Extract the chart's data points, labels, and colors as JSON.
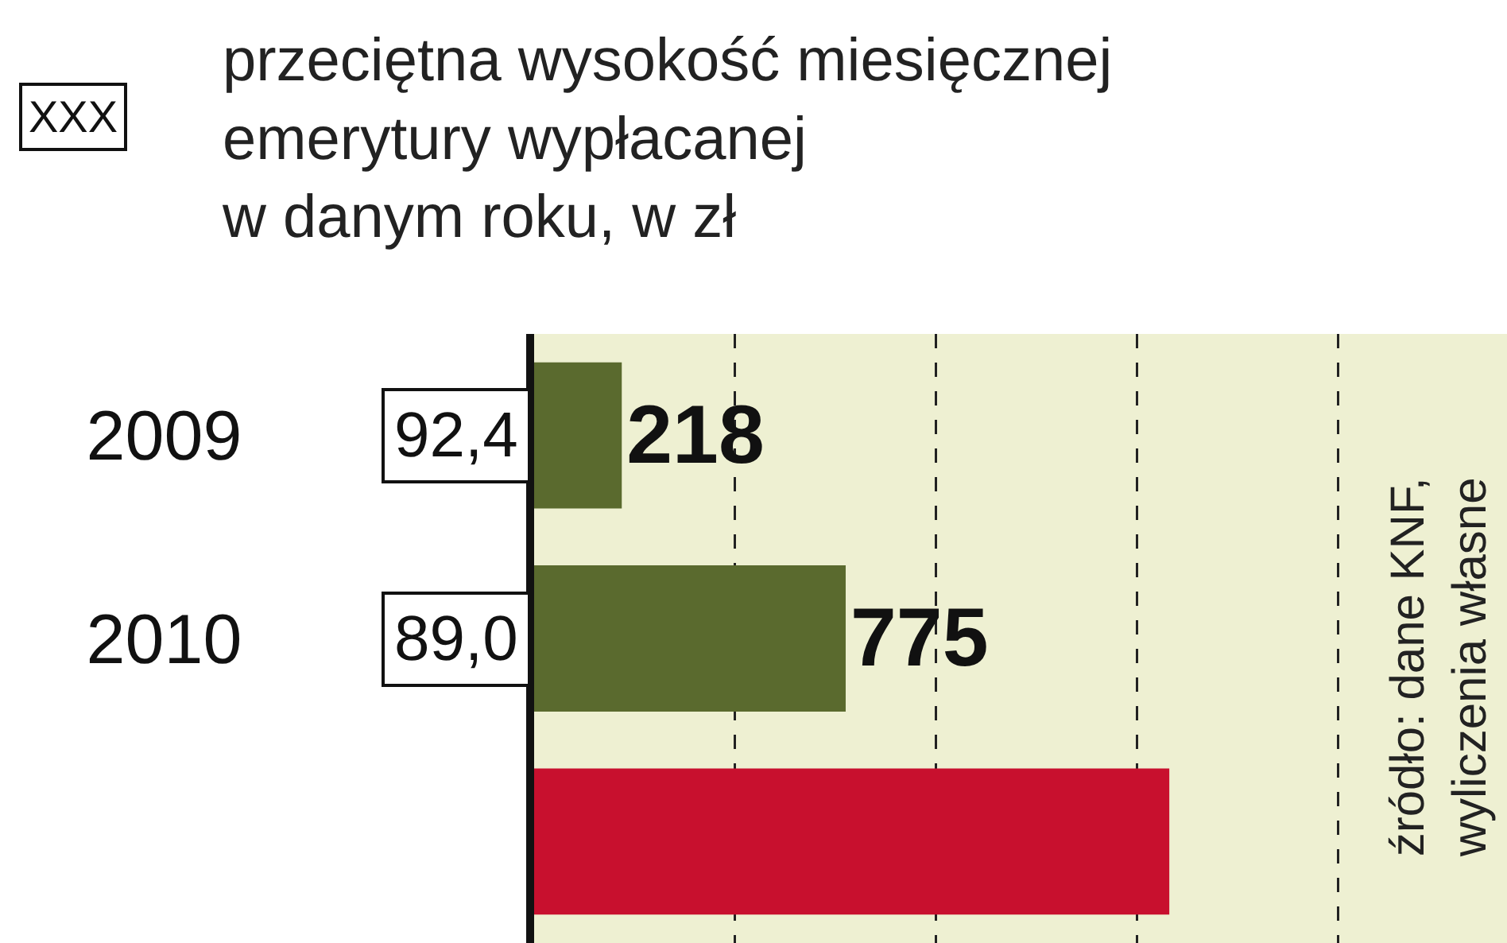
{
  "chart_data": {
    "type": "bar",
    "orientation": "horizontal",
    "title": "przeciętna wysokość miesięcznej\nemerytury wypłacanej\nw danym roku, w zł",
    "categories": [
      "2009",
      "2010",
      null
    ],
    "values": [
      218,
      775,
      1580
    ],
    "colors": [
      "#5a6a2e",
      "#5a6a2e",
      "#c8102e"
    ],
    "value_labels": [
      "218",
      "775",
      null
    ],
    "xlim": [
      0,
      2420
    ],
    "xticks": [
      {
        "value": 500,
        "label": null
      },
      {
        "value": 1000,
        "label": null
      },
      {
        "value": 1500,
        "label": null
      },
      {
        "value": 2000,
        "label": null
      }
    ],
    "grid": "x",
    "line_style": "dashed",
    "tick_labels": "y",
    "annotations": [
      "XXX",
      "92,4",
      "89,0",
      "źródło: dane KNF,\nwyliczenia własne"
    ]
  }
}
